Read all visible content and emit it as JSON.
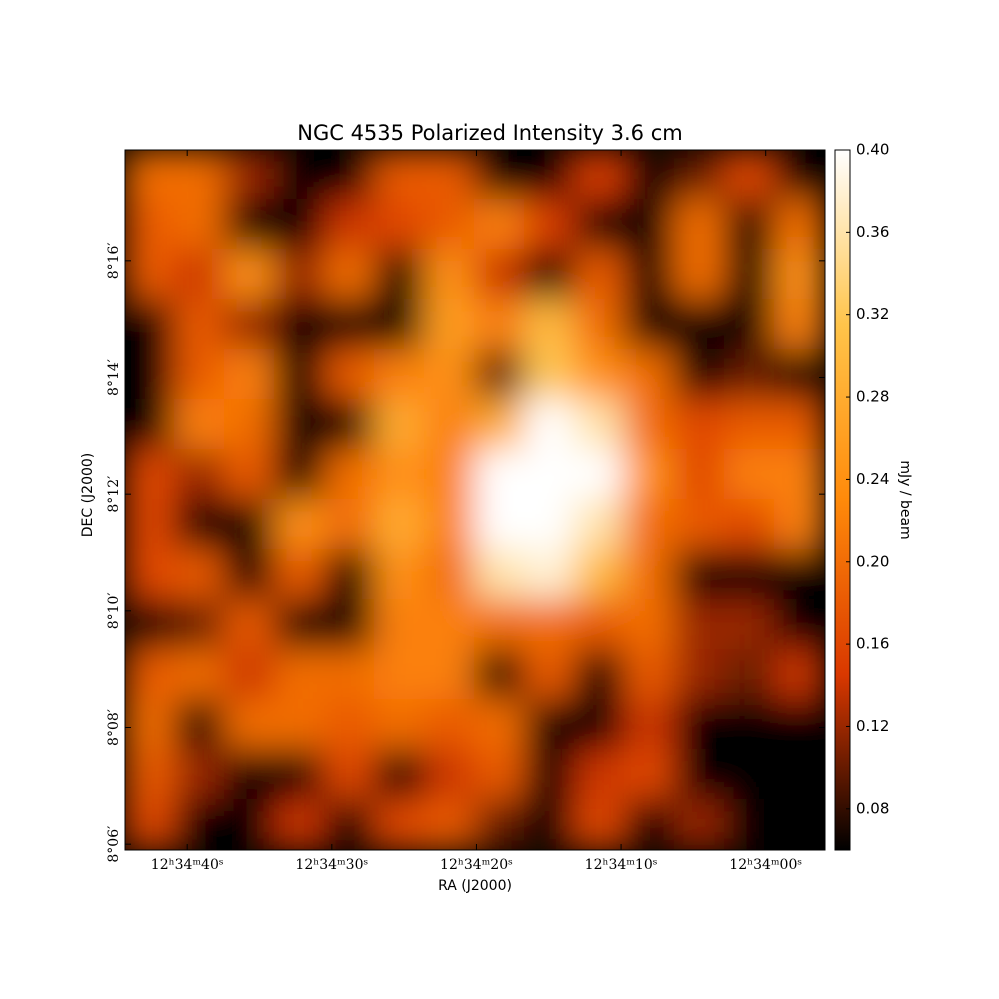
{
  "chart_data": {
    "type": "image",
    "title": "NGC 4535 Polarized Intensity 3.6 cm",
    "xlabel": "RA (J2000)",
    "ylabel": "DEC (J2000)",
    "colorbar_label": "mJy / beam",
    "xlim": [
      45284.3,
      45235.9
    ],
    "xticks": [
      {
        "value": 45280,
        "label": "12ʰ34ᵐ40ˢ"
      },
      {
        "value": 45270,
        "label": "12ʰ34ᵐ30ˢ"
      },
      {
        "value": 45260,
        "label": "12ʰ34ᵐ20ˢ"
      },
      {
        "value": 45250,
        "label": "12ʰ34ᵐ10ˢ"
      },
      {
        "value": 45240,
        "label": "12ʰ34ᵐ00ˢ"
      }
    ],
    "ylim": [
      485.9,
      497.9
    ],
    "yticks": [
      {
        "value": 486,
        "label": "8°06′"
      },
      {
        "value": 488,
        "label": "8°08′"
      },
      {
        "value": 490,
        "label": "8°10′"
      },
      {
        "value": 492,
        "label": "8°12′"
      },
      {
        "value": 494,
        "label": "8°14′"
      },
      {
        "value": 496,
        "label": "8°16′"
      }
    ],
    "clim": [
      0.06,
      0.4
    ],
    "cticks": [
      0.08,
      0.12,
      0.16,
      {
        "value": 0.2,
        "label": "0.20"
      },
      0.24,
      0.28,
      0.32,
      0.36,
      {
        "value": 0.4,
        "label": "0.40"
      }
    ],
    "colormap": [
      "#000000",
      "#d93800",
      "#ff8a0a",
      "#ffc44a",
      "#ffffff"
    ],
    "z": [
      [
        0.2,
        0.2,
        0.12,
        0.06,
        0.06,
        0.18,
        0.18,
        0.06,
        0.06,
        0.15,
        0.06,
        0.1,
        0.16,
        0.06
      ],
      [
        0.18,
        0.2,
        0.06,
        0.06,
        0.14,
        0.16,
        0.18,
        0.22,
        0.15,
        0.06,
        0.06,
        0.2,
        0.06,
        0.2
      ],
      [
        0.18,
        0.14,
        0.24,
        0.12,
        0.2,
        0.06,
        0.24,
        0.14,
        0.06,
        0.18,
        0.06,
        0.2,
        0.06,
        0.24
      ],
      [
        0.06,
        0.18,
        0.12,
        0.06,
        0.06,
        0.06,
        0.26,
        0.22,
        0.3,
        0.2,
        0.06,
        0.06,
        0.06,
        0.22
      ],
      [
        0.06,
        0.18,
        0.22,
        0.06,
        0.18,
        0.22,
        0.24,
        0.1,
        0.32,
        0.24,
        0.2,
        0.06,
        0.1,
        0.06
      ],
      [
        0.06,
        0.22,
        0.2,
        0.06,
        0.06,
        0.28,
        0.22,
        0.28,
        0.4,
        0.36,
        0.2,
        0.16,
        0.18,
        0.18
      ],
      [
        0.16,
        0.12,
        0.18,
        0.06,
        0.2,
        0.24,
        0.22,
        0.4,
        0.4,
        0.4,
        0.24,
        0.16,
        0.22,
        0.22
      ],
      [
        0.16,
        0.06,
        0.06,
        0.24,
        0.2,
        0.28,
        0.22,
        0.4,
        0.4,
        0.36,
        0.2,
        0.18,
        0.16,
        0.22
      ],
      [
        0.16,
        0.18,
        0.06,
        0.18,
        0.06,
        0.24,
        0.2,
        0.36,
        0.38,
        0.3,
        0.2,
        0.06,
        0.06,
        0.06
      ],
      [
        0.06,
        0.1,
        0.18,
        0.06,
        0.06,
        0.22,
        0.22,
        0.2,
        0.2,
        0.18,
        0.2,
        0.12,
        0.12,
        0.06
      ],
      [
        0.18,
        0.2,
        0.14,
        0.2,
        0.2,
        0.22,
        0.22,
        0.06,
        0.18,
        0.06,
        0.18,
        0.12,
        0.1,
        0.14
      ],
      [
        0.2,
        0.06,
        0.2,
        0.2,
        0.18,
        0.2,
        0.18,
        0.2,
        0.06,
        0.06,
        0.14,
        0.06,
        0.06,
        0.06
      ],
      [
        0.18,
        0.12,
        0.06,
        0.06,
        0.16,
        0.06,
        0.14,
        0.18,
        0.06,
        0.14,
        0.16,
        0.06,
        0.06,
        0.06
      ],
      [
        0.16,
        0.06,
        0.06,
        0.14,
        0.06,
        0.16,
        0.18,
        0.1,
        0.06,
        0.16,
        0.06,
        0.12,
        0.06,
        0.06
      ]
    ]
  }
}
